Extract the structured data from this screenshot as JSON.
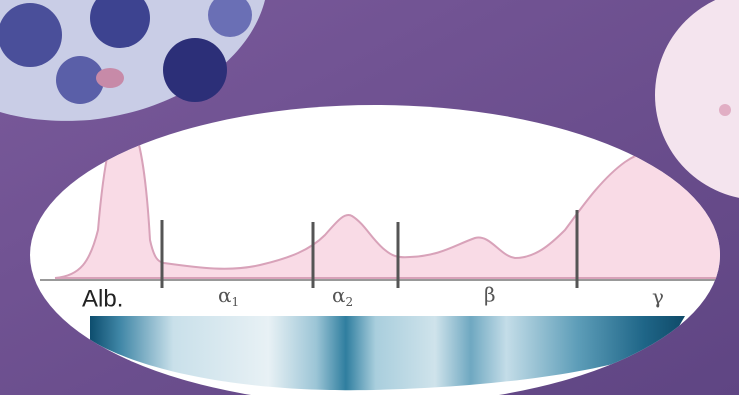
{
  "fractions": [
    {
      "symbol": "Alb."
    },
    {
      "symbol": "α",
      "subscript": "1"
    },
    {
      "symbol": "α",
      "subscript": "2"
    },
    {
      "symbol": "β"
    },
    {
      "symbol": "γ"
    }
  ]
}
